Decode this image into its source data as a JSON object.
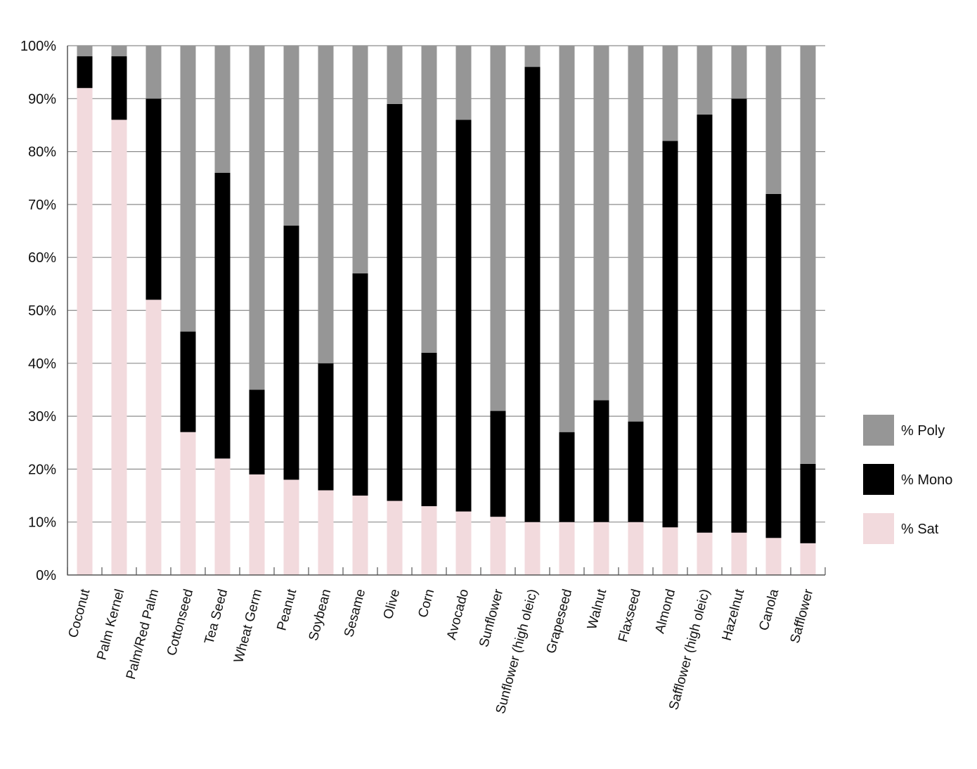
{
  "chart_data": {
    "type": "bar",
    "stacked": true,
    "categories": [
      "Coconut",
      "Palm Kernel",
      "Palm/Red Palm",
      "Cottonseed",
      "Tea Seed",
      "Wheat Germ",
      "Peanut",
      "Soybean",
      "Sesame",
      "Olive",
      "Corn",
      "Avocado",
      "Sunflower",
      "Sunflower (high oleic)",
      "Grapeseed",
      "Walnut",
      "Flaxseed",
      "Almond",
      "Safflower (high oleic)",
      "Hazelnut",
      "Canola",
      "Safflower"
    ],
    "series": [
      {
        "name": "% Sat",
        "color": "#f2dadd",
        "values": [
          92,
          86,
          52,
          27,
          22,
          19,
          18,
          16,
          15,
          14,
          13,
          12,
          11,
          10,
          10,
          10,
          10,
          9,
          8,
          8,
          7,
          6
        ]
      },
      {
        "name": "% Mono",
        "color": "#000000",
        "values": [
          6,
          12,
          38,
          19,
          54,
          16,
          48,
          24,
          42,
          75,
          29,
          74,
          20,
          86,
          17,
          23,
          19,
          73,
          79,
          82,
          65,
          15
        ]
      },
      {
        "name": "% Poly",
        "color": "#969696",
        "values": [
          2,
          2,
          10,
          54,
          24,
          65,
          34,
          60,
          43,
          11,
          58,
          14,
          69,
          4,
          73,
          67,
          71,
          18,
          13,
          10,
          28,
          79
        ]
      }
    ],
    "legend_order": [
      "% Poly",
      "% Mono",
      "% Sat"
    ],
    "ylim": [
      0,
      100
    ],
    "yticks": [
      "0%",
      "10%",
      "20%",
      "30%",
      "40%",
      "50%",
      "60%",
      "70%",
      "80%",
      "90%",
      "100%"
    ],
    "grid": true,
    "legend_position": "right",
    "title": "",
    "xlabel": "",
    "ylabel": ""
  }
}
